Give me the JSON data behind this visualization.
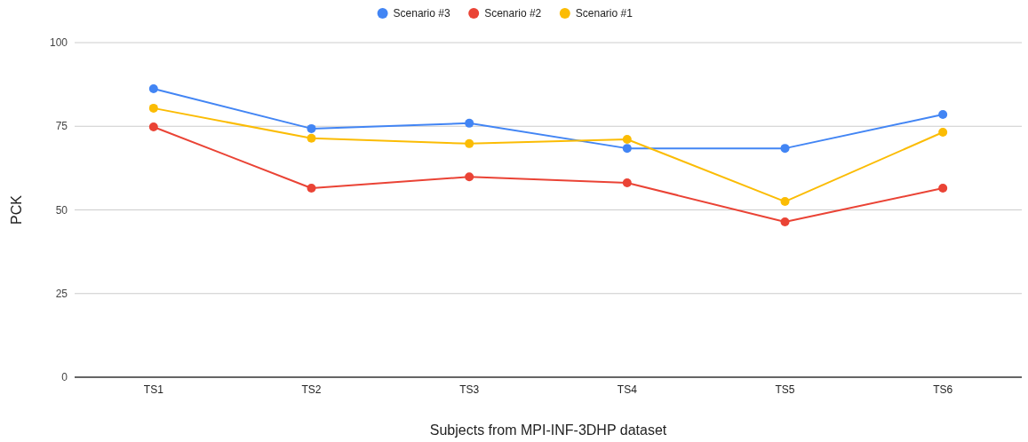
{
  "chart_data": {
    "type": "line",
    "xlabel": "Subjects from MPI-INF-3DHP dataset",
    "ylabel": "PCK",
    "categories": [
      "TS1",
      "TS2",
      "TS3",
      "TS4",
      "TS5",
      "TS6"
    ],
    "series": [
      {
        "name": "Scenario #3",
        "color": "#4285f4",
        "values": [
          86.2,
          74.3,
          75.9,
          68.4,
          68.4,
          78.5
        ]
      },
      {
        "name": "Scenario #2",
        "color": "#ea4335",
        "values": [
          74.8,
          56.5,
          59.9,
          58.1,
          46.4,
          56.5
        ]
      },
      {
        "name": "Scenario #1",
        "color": "#fbbc04",
        "values": [
          80.4,
          71.4,
          69.8,
          71.1,
          52.5,
          73.2
        ]
      }
    ],
    "ylim": [
      0,
      100
    ],
    "yticks": [
      0,
      25,
      50,
      75,
      100
    ],
    "grid": "y",
    "legend": "top",
    "marker": "circle",
    "line_style": "solid"
  }
}
